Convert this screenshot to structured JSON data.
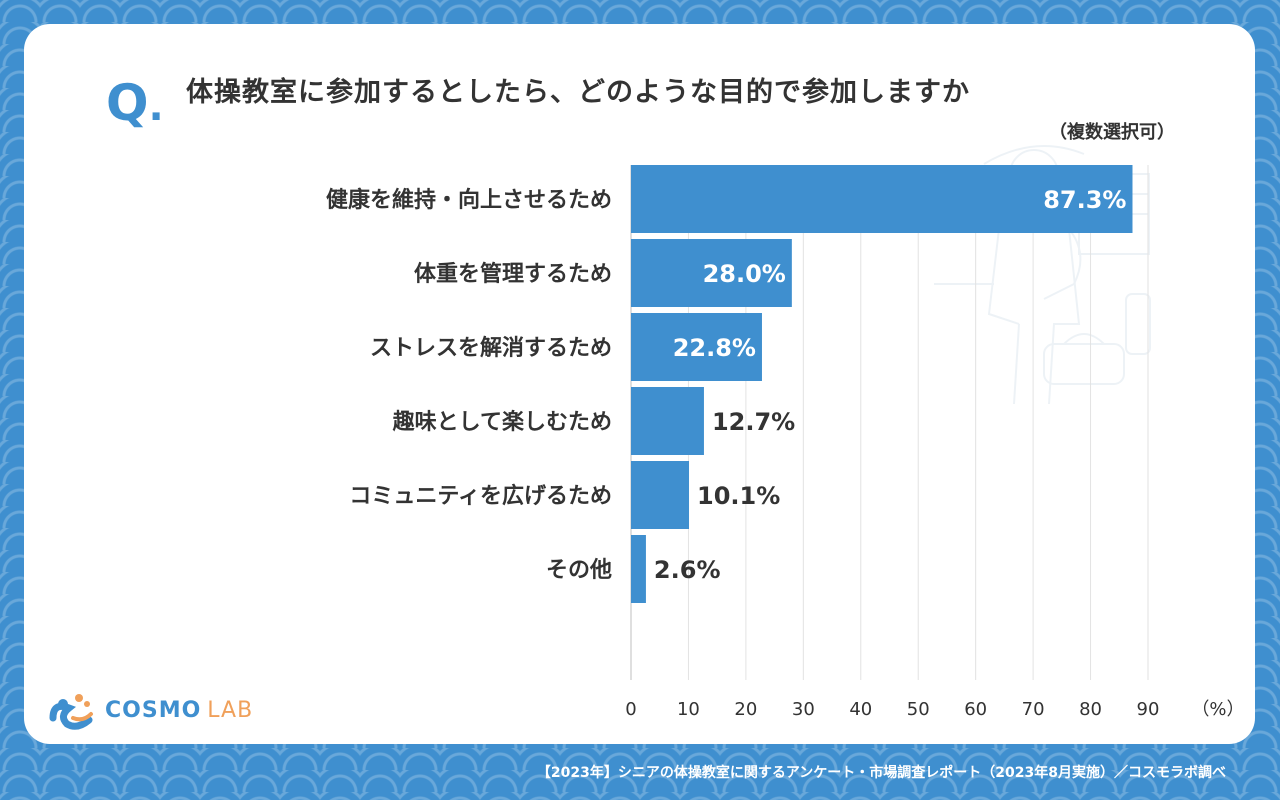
{
  "question": {
    "mark": "Q",
    "mark_dot": ".",
    "title": "体操教室に参加するとしたら、どのような目的で参加しますか",
    "subtitle": "（複数選択可）"
  },
  "logo": {
    "text_main": "COSMO",
    "text_sub": "LAB"
  },
  "footer": "【2023年】シニアの体操教室に関するアンケート・市場調査レポート（2023年8月実施）／コスモラボ調べ",
  "chart_data": {
    "type": "bar",
    "orientation": "horizontal",
    "categories": [
      "健康を維持・向上させるため",
      "体重を管理するため",
      "ストレスを解消するため",
      "趣味として楽しむため",
      "コミュニティを広げるため",
      "その他"
    ],
    "values": [
      87.3,
      28.0,
      22.8,
      12.7,
      10.1,
      2.6
    ],
    "value_labels": [
      "87.3%",
      "28.0%",
      "22.8%",
      "12.7%",
      "10.1%",
      "2.6%"
    ],
    "x_ticks": [
      "0",
      "10",
      "20",
      "30",
      "40",
      "50",
      "60",
      "70",
      "80",
      "90"
    ],
    "x_unit": "（%）",
    "xlim": [
      0,
      90
    ],
    "grid": true,
    "bar_color": "#3f8fcf"
  },
  "colors": {
    "accent": "#3f8fcf",
    "text": "#333333",
    "logo_sub": "#f0a05a"
  }
}
